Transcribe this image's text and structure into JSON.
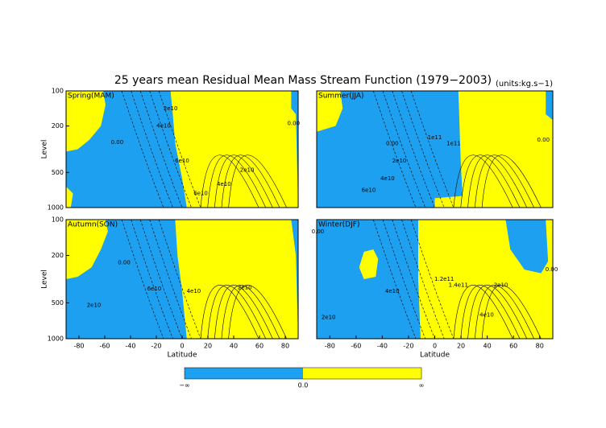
{
  "title": "25 years mean Residual Mean Mass Stream Function (1979−2003)",
  "units_note": "(units:kg.s−1)",
  "colorbar": {
    "labels": [
      "−∞",
      "0.0",
      "∞"
    ],
    "colors": [
      "#1ea0f0",
      "#ffff00"
    ]
  },
  "chart_data": [
    {
      "type": "contour",
      "title": "Spring(MAM)",
      "y_label": "Level",
      "xlim": [
        -90,
        90
      ],
      "ylim": [
        1000,
        100
      ],
      "yscale": "log",
      "yticks": [
        100,
        200,
        500,
        1000
      ],
      "annotations": [
        "0.00",
        "2e10",
        "4e10",
        "6e10",
        "2e10",
        "4e10",
        "6e10",
        "0.00"
      ]
    },
    {
      "type": "contour",
      "title": "Summer(JJA)",
      "xlim": [
        -90,
        90
      ],
      "ylim": [
        1000,
        100
      ],
      "yscale": "log",
      "annotations": [
        "0.00",
        "2e10",
        "4e10",
        "1e11",
        "6e10",
        "1e11",
        "0.00"
      ]
    },
    {
      "type": "contour",
      "title": "Autumn(SON)",
      "y_label": "Level",
      "x_label": "Latitude",
      "xlim": [
        -90,
        90
      ],
      "ylim": [
        1000,
        100
      ],
      "yscale": "log",
      "xticks": [
        -80,
        -60,
        -40,
        -20,
        0,
        20,
        40,
        60,
        80
      ],
      "yticks": [
        100,
        200,
        500,
        1000
      ],
      "annotations": [
        "0.00",
        "2e10",
        "6e10",
        "4e10",
        "2e10"
      ]
    },
    {
      "type": "contour",
      "title": "Winter(DJF)",
      "x_label": "Latitude",
      "xlim": [
        -90,
        90
      ],
      "ylim": [
        1000,
        100
      ],
      "yscale": "log",
      "xticks": [
        -80,
        -60,
        -40,
        -20,
        0,
        20,
        40,
        60,
        80
      ],
      "annotations": [
        "0.00",
        "2e10",
        "4e10",
        "1.2e11",
        "1.4e11",
        "2e10",
        "4e10",
        "0.00"
      ]
    }
  ]
}
